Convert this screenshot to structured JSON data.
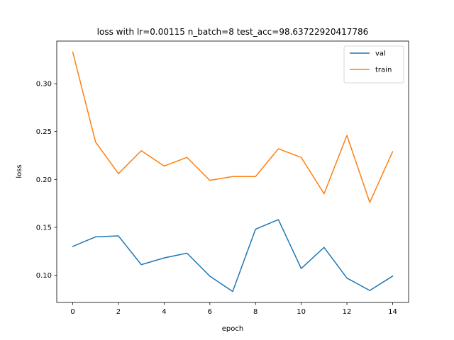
{
  "chart_data": {
    "type": "line",
    "title": "loss with lr=0.00115 n_batch=8 test_acc=98.63722920417786",
    "xlabel": "epoch",
    "ylabel": "loss",
    "xlim": [
      -0.7,
      14.7
    ],
    "ylim": [
      0.0715,
      0.3445
    ],
    "xticks": [
      0,
      2,
      4,
      6,
      8,
      10,
      12,
      14
    ],
    "yticks": [
      0.1,
      0.15,
      0.2,
      0.25,
      0.3
    ],
    "ytick_labels": [
      "0.10",
      "0.15",
      "0.20",
      "0.25",
      "0.30"
    ],
    "grid": false,
    "legend_position": "top-right",
    "x": [
      0,
      1,
      2,
      3,
      4,
      5,
      6,
      7,
      8,
      9,
      10,
      11,
      12,
      13,
      14
    ],
    "series": [
      {
        "name": "val",
        "color": "#1f77b4",
        "values": [
          0.13,
          0.14,
          0.141,
          0.111,
          0.118,
          0.123,
          0.099,
          0.083,
          0.148,
          0.158,
          0.107,
          0.129,
          0.097,
          0.084,
          0.099
        ]
      },
      {
        "name": "train",
        "color": "#ff7f0e",
        "values": [
          0.333,
          0.239,
          0.206,
          0.23,
          0.214,
          0.223,
          0.199,
          0.203,
          0.203,
          0.232,
          0.223,
          0.185,
          0.246,
          0.176,
          0.229
        ]
      }
    ]
  }
}
